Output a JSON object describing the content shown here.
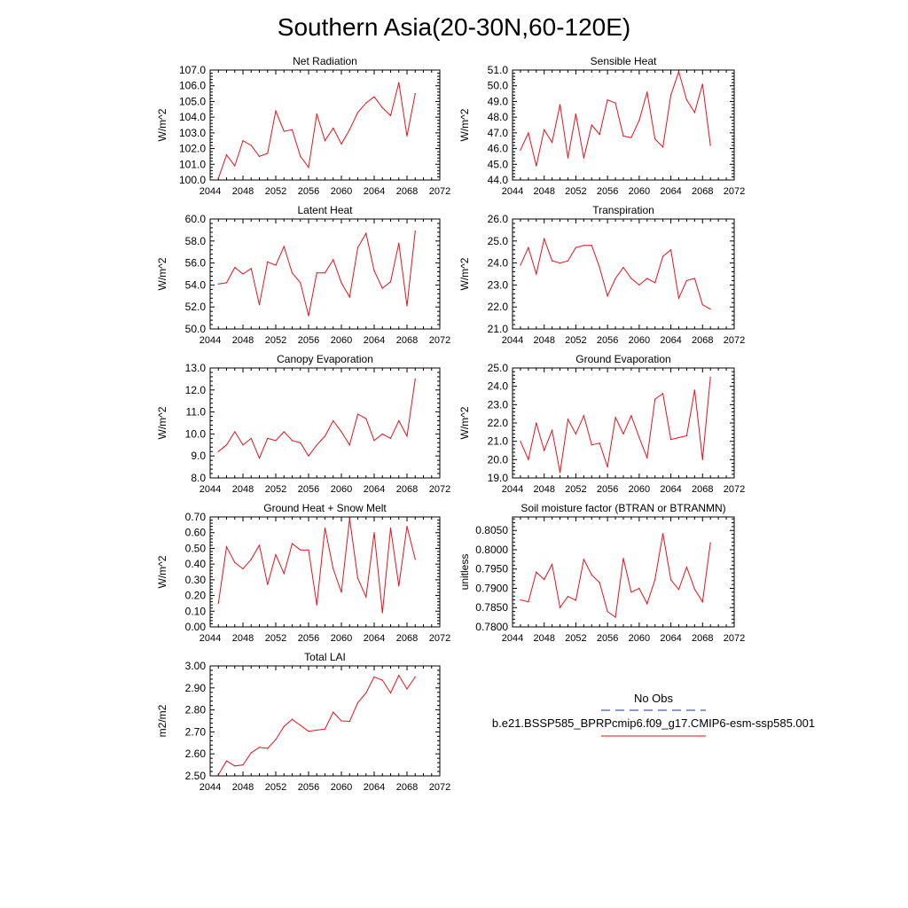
{
  "figure": {
    "title": "Southern Asia(20-30N,60-120E)"
  },
  "colors": {
    "series_line": "#e8111b",
    "no_obs_line": "#2a2a9a",
    "model_line": "#e8111b",
    "axis": "#000000"
  },
  "legend": {
    "entries": [
      {
        "label": "No Obs",
        "style": "dashed"
      },
      {
        "label": "b.e21.BSSP585_BPRPcmip6.f09_g17.CMIP6-esm-ssp585.001",
        "style": "solid"
      }
    ]
  },
  "chart_data": [
    {
      "type": "line",
      "title": "Net Radiation",
      "ylabel": "W/m^2",
      "xlim": [
        2044,
        2072
      ],
      "ylim": [
        100.0,
        107.0
      ],
      "ydecimals": 1,
      "xticks": [
        2044,
        2048,
        2052,
        2056,
        2060,
        2064,
        2068,
        2072
      ],
      "yticks": [
        100.0,
        101.0,
        102.0,
        103.0,
        104.0,
        105.0,
        106.0,
        107.0
      ],
      "x": [
        2045,
        2046,
        2047,
        2048,
        2049,
        2050,
        2051,
        2052,
        2053,
        2054,
        2055,
        2056,
        2057,
        2058,
        2059,
        2060,
        2061,
        2062,
        2063,
        2064,
        2065,
        2066,
        2067,
        2068,
        2069
      ],
      "series": [
        {
          "values": [
            100.1,
            101.6,
            100.9,
            102.5,
            102.2,
            101.5,
            101.7,
            104.4,
            103.1,
            103.2,
            101.5,
            100.8,
            104.2,
            102.5,
            103.3,
            102.3,
            103.2,
            104.3,
            104.9,
            105.3,
            104.6,
            104.1,
            106.2,
            102.8,
            105.5
          ]
        }
      ]
    },
    {
      "type": "line",
      "title": "Sensible Heat",
      "ylabel": "W/m^2",
      "xlim": [
        2044,
        2072
      ],
      "ylim": [
        44.0,
        51.0
      ],
      "ydecimals": 1,
      "xticks": [
        2044,
        2048,
        2052,
        2056,
        2060,
        2064,
        2068,
        2072
      ],
      "yticks": [
        44.0,
        45.0,
        46.0,
        47.0,
        48.0,
        49.0,
        50.0,
        51.0
      ],
      "x": [
        2045,
        2046,
        2047,
        2048,
        2049,
        2050,
        2051,
        2052,
        2053,
        2054,
        2055,
        2056,
        2057,
        2058,
        2059,
        2060,
        2061,
        2062,
        2063,
        2064,
        2065,
        2066,
        2067,
        2068,
        2069
      ],
      "series": [
        {
          "values": [
            45.9,
            47.0,
            44.9,
            47.2,
            46.4,
            48.8,
            45.4,
            48.2,
            45.4,
            47.5,
            46.9,
            49.1,
            48.9,
            46.8,
            46.7,
            47.8,
            49.6,
            46.6,
            46.1,
            49.4,
            50.9,
            49.1,
            48.3,
            50.1,
            46.2
          ]
        }
      ]
    },
    {
      "type": "line",
      "title": "Latent Heat",
      "ylabel": "W/m^2",
      "xlim": [
        2044,
        2072
      ],
      "ylim": [
        50.0,
        60.0
      ],
      "ydecimals": 1,
      "xticks": [
        2044,
        2048,
        2052,
        2056,
        2060,
        2064,
        2068,
        2072
      ],
      "yticks": [
        50.0,
        52.0,
        54.0,
        56.0,
        58.0,
        60.0
      ],
      "x": [
        2045,
        2046,
        2047,
        2048,
        2049,
        2050,
        2051,
        2052,
        2053,
        2054,
        2055,
        2056,
        2057,
        2058,
        2059,
        2060,
        2061,
        2062,
        2063,
        2064,
        2065,
        2066,
        2067,
        2068,
        2069
      ],
      "series": [
        {
          "values": [
            54.1,
            54.2,
            55.6,
            55.0,
            55.5,
            52.2,
            56.1,
            55.8,
            57.5,
            55.1,
            54.2,
            51.2,
            55.1,
            55.1,
            56.3,
            54.2,
            52.9,
            57.4,
            58.7,
            55.3,
            53.7,
            54.3,
            57.8,
            52.1,
            58.9
          ]
        }
      ]
    },
    {
      "type": "line",
      "title": "Transpiration",
      "ylabel": "W/m^2",
      "xlim": [
        2044,
        2072
      ],
      "ylim": [
        21.0,
        26.0
      ],
      "ydecimals": 1,
      "xticks": [
        2044,
        2048,
        2052,
        2056,
        2060,
        2064,
        2068,
        2072
      ],
      "yticks": [
        21.0,
        22.0,
        23.0,
        24.0,
        25.0,
        26.0
      ],
      "x": [
        2045,
        2046,
        2047,
        2048,
        2049,
        2050,
        2051,
        2052,
        2053,
        2054,
        2055,
        2056,
        2057,
        2058,
        2059,
        2060,
        2061,
        2062,
        2063,
        2064,
        2065,
        2066,
        2067,
        2068,
        2069
      ],
      "series": [
        {
          "values": [
            23.9,
            24.7,
            23.5,
            25.1,
            24.1,
            24.0,
            24.1,
            24.7,
            24.8,
            24.8,
            23.8,
            22.5,
            23.3,
            23.8,
            23.3,
            23.0,
            23.3,
            23.1,
            24.3,
            24.6,
            22.4,
            23.2,
            23.3,
            22.1,
            21.9
          ]
        }
      ]
    },
    {
      "type": "line",
      "title": "Canopy Evaporation",
      "ylabel": "W/m^2",
      "xlim": [
        2044,
        2072
      ],
      "ylim": [
        8.0,
        13.0
      ],
      "ydecimals": 1,
      "xticks": [
        2044,
        2048,
        2052,
        2056,
        2060,
        2064,
        2068,
        2072
      ],
      "yticks": [
        8.0,
        9.0,
        10.0,
        11.0,
        12.0,
        13.0
      ],
      "x": [
        2045,
        2046,
        2047,
        2048,
        2049,
        2050,
        2051,
        2052,
        2053,
        2054,
        2055,
        2056,
        2057,
        2058,
        2059,
        2060,
        2061,
        2062,
        2063,
        2064,
        2065,
        2066,
        2067,
        2068,
        2069
      ],
      "series": [
        {
          "values": [
            9.2,
            9.5,
            10.1,
            9.5,
            9.8,
            8.9,
            9.8,
            9.7,
            10.1,
            9.7,
            9.6,
            9.0,
            9.5,
            9.9,
            10.6,
            10.1,
            9.5,
            10.9,
            10.7,
            9.7,
            10.0,
            9.8,
            10.6,
            9.9,
            12.5
          ]
        }
      ]
    },
    {
      "type": "line",
      "title": "Ground Evaporation",
      "ylabel": "W/m^2",
      "xlim": [
        2044,
        2072
      ],
      "ylim": [
        19.0,
        25.0
      ],
      "ydecimals": 1,
      "xticks": [
        2044,
        2048,
        2052,
        2056,
        2060,
        2064,
        2068,
        2072
      ],
      "yticks": [
        19.0,
        20.0,
        21.0,
        22.0,
        23.0,
        24.0,
        25.0
      ],
      "x": [
        2045,
        2046,
        2047,
        2048,
        2049,
        2050,
        2051,
        2052,
        2053,
        2054,
        2055,
        2056,
        2057,
        2058,
        2059,
        2060,
        2061,
        2062,
        2063,
        2064,
        2065,
        2066,
        2067,
        2068,
        2069
      ],
      "series": [
        {
          "values": [
            21.0,
            20.0,
            22.0,
            20.5,
            21.6,
            19.3,
            22.2,
            21.4,
            22.4,
            20.8,
            20.9,
            19.6,
            22.3,
            21.4,
            22.4,
            21.2,
            20.1,
            23.3,
            23.6,
            21.1,
            21.2,
            21.3,
            23.8,
            20.0,
            24.5
          ]
        }
      ]
    },
    {
      "type": "line",
      "title": "Ground Heat + Snow Melt",
      "ylabel": "W/m^2",
      "xlim": [
        2044,
        2072
      ],
      "ylim": [
        0.0,
        0.7
      ],
      "ydecimals": 2,
      "xticks": [
        2044,
        2048,
        2052,
        2056,
        2060,
        2064,
        2068,
        2072
      ],
      "yticks": [
        0.0,
        0.1,
        0.2,
        0.3,
        0.4,
        0.5,
        0.6,
        0.7
      ],
      "x": [
        2045,
        2046,
        2047,
        2048,
        2049,
        2050,
        2051,
        2052,
        2053,
        2054,
        2055,
        2056,
        2057,
        2058,
        2059,
        2060,
        2061,
        2062,
        2063,
        2064,
        2065,
        2066,
        2067,
        2068,
        2069
      ],
      "series": [
        {
          "values": [
            0.15,
            0.51,
            0.41,
            0.37,
            0.43,
            0.52,
            0.27,
            0.46,
            0.34,
            0.53,
            0.49,
            0.49,
            0.14,
            0.63,
            0.37,
            0.22,
            0.69,
            0.31,
            0.19,
            0.6,
            0.09,
            0.63,
            0.26,
            0.64,
            0.43
          ]
        }
      ]
    },
    {
      "type": "line",
      "title": "Soil moisture factor (BTRAN or BTRANMN)",
      "ylabel": "unitless",
      "xlim": [
        2044,
        2072
      ],
      "ylim": [
        0.78,
        0.8085
      ],
      "ydecimals": 4,
      "xticks": [
        2044,
        2048,
        2052,
        2056,
        2060,
        2064,
        2068,
        2072
      ],
      "yticks": [
        0.78,
        0.785,
        0.79,
        0.795,
        0.8,
        0.805
      ],
      "x": [
        2045,
        2046,
        2047,
        2048,
        2049,
        2050,
        2051,
        2052,
        2053,
        2054,
        2055,
        2056,
        2057,
        2058,
        2059,
        2060,
        2061,
        2062,
        2063,
        2064,
        2065,
        2066,
        2067,
        2068,
        2069
      ],
      "series": [
        {
          "values": [
            0.787,
            0.7865,
            0.7942,
            0.7923,
            0.7962,
            0.785,
            0.7879,
            0.7869,
            0.7975,
            0.7935,
            0.7915,
            0.784,
            0.7825,
            0.7978,
            0.789,
            0.79,
            0.786,
            0.7923,
            0.8042,
            0.7922,
            0.7897,
            0.7955,
            0.7898,
            0.7865,
            0.8018
          ]
        }
      ]
    },
    {
      "type": "line",
      "title": "Total LAI",
      "ylabel": "m2/m2",
      "xlim": [
        2044,
        2072
      ],
      "ylim": [
        2.5,
        3.0
      ],
      "ydecimals": 2,
      "xticks": [
        2044,
        2048,
        2052,
        2056,
        2060,
        2064,
        2068,
        2072
      ],
      "yticks": [
        2.5,
        2.6,
        2.7,
        2.8,
        2.9,
        3.0
      ],
      "x": [
        2045,
        2046,
        2047,
        2048,
        2049,
        2050,
        2051,
        2052,
        2053,
        2054,
        2055,
        2056,
        2057,
        2058,
        2059,
        2060,
        2061,
        2062,
        2063,
        2064,
        2065,
        2066,
        2067,
        2068,
        2069
      ],
      "series": [
        {
          "values": [
            2.505,
            2.568,
            2.545,
            2.55,
            2.605,
            2.63,
            2.625,
            2.665,
            2.725,
            2.757,
            2.73,
            2.703,
            2.708,
            2.713,
            2.79,
            2.75,
            2.748,
            2.833,
            2.877,
            2.95,
            2.935,
            2.877,
            2.957,
            2.895,
            2.95
          ]
        }
      ]
    }
  ]
}
